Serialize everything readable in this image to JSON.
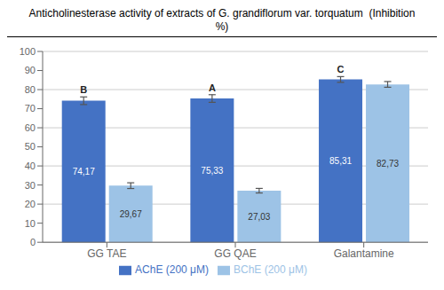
{
  "chart_data": {
    "type": "bar",
    "title": "Anticholinesterase activity of extracts of G. grandiflorum var. torquatum  (Inhibition %)",
    "categories": [
      "GG TAE",
      "GG QAE",
      "Galantamine"
    ],
    "series": [
      {
        "name": "AChE (200 μM)",
        "color": "#4472c4",
        "values": [
          74.17,
          75.33,
          85.31
        ],
        "errors": [
          2.0,
          2.0,
          1.5
        ],
        "value_labels": [
          "74,17",
          "75,33",
          "85,31"
        ]
      },
      {
        "name": "BChE (200 μM)",
        "color": "#9dc3e6",
        "values": [
          29.67,
          27.03,
          82.73
        ],
        "errors": [
          1.5,
          1.2,
          1.5
        ],
        "value_labels": [
          "29,67",
          "27,03",
          "82,73"
        ]
      }
    ],
    "annotations": [
      {
        "text": "B",
        "category": "GG TAE",
        "series": "AChE (200 μM)"
      },
      {
        "text": "A",
        "category": "GG QAE",
        "series": "AChE (200 μM)"
      },
      {
        "text": "C",
        "category": "Galantamine",
        "series": "AChE (200 μM)"
      }
    ],
    "ylim": [
      0,
      100
    ],
    "yticks": [
      0,
      10,
      20,
      30,
      40,
      50,
      60,
      70,
      80,
      90,
      100
    ],
    "grid": true,
    "legend": "bottom",
    "data_labels": true
  }
}
